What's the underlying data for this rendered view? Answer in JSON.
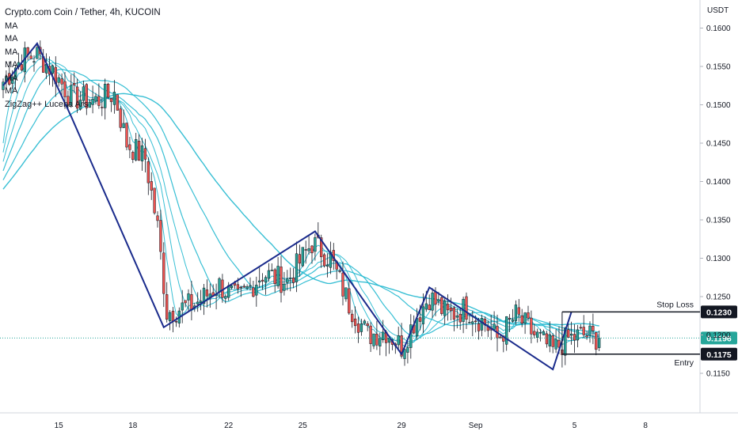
{
  "legend": {
    "title": "Crypto.com Coin / Tether, 4h, KUCOIN",
    "indicators": [
      "MA",
      "MA",
      "MA",
      "MA",
      "MA",
      "MA",
      "ZigZag++ Lucena Ars"
    ]
  },
  "unit": "USDT",
  "colors": {
    "bull": "#26a69a",
    "bear": "#ef5350",
    "zigzag": "#1a2b8c",
    "ma": "#22b8cf",
    "price_tag": "#26a69a",
    "level_tag": "#131722"
  },
  "chart_data": {
    "type": "candlestick",
    "symbol": "Crypto.com Coin / Tether",
    "timeframe": "4h",
    "exchange": "KUCOIN",
    "ylim": [
      0.1108,
      0.164
    ],
    "yticks": [
      "0.1150",
      "0.1200",
      "0.1250",
      "0.1300",
      "0.1350",
      "0.1400",
      "0.1450",
      "0.1500",
      "0.1550",
      "0.1600"
    ],
    "ytick_values": [
      0.115,
      0.12,
      0.125,
      0.13,
      0.135,
      0.14,
      0.145,
      0.15,
      0.155,
      0.16
    ],
    "xlim": [
      0,
      230
    ],
    "xticks": [
      {
        "label": "15",
        "index": 18
      },
      {
        "label": "18",
        "index": 42
      },
      {
        "label": "22",
        "index": 73
      },
      {
        "label": "25",
        "index": 97
      },
      {
        "label": "29",
        "index": 129
      },
      {
        "label": "Sep",
        "index": 153
      },
      {
        "label": "5",
        "index": 185
      },
      {
        "label": "8",
        "index": 208
      }
    ],
    "current_price": 0.1196,
    "price_labels": [
      "0.1196",
      "0.1230",
      "0.1175"
    ],
    "levels": [
      {
        "label": "Stop Loss",
        "value": 0.123,
        "tag": "0.1230"
      },
      {
        "label": "Entry",
        "value": 0.1175,
        "tag": "0.1175"
      }
    ],
    "zigzag": [
      {
        "i": 0,
        "p": 0.1525
      },
      {
        "i": 11,
        "p": 0.158
      },
      {
        "i": 22,
        "p": 0.1485
      },
      {
        "i": 52,
        "p": 0.121
      },
      {
        "i": 101,
        "p": 0.1335
      },
      {
        "i": 129,
        "p": 0.1175
      },
      {
        "i": 138,
        "p": 0.1262
      },
      {
        "i": 178,
        "p": 0.1155
      },
      {
        "i": 184,
        "p": 0.123
      }
    ],
    "anchors": [
      {
        "i": 0,
        "p": 0.153
      },
      {
        "i": 6,
        "p": 0.156
      },
      {
        "i": 11,
        "p": 0.1565
      },
      {
        "i": 16,
        "p": 0.1545
      },
      {
        "i": 22,
        "p": 0.151
      },
      {
        "i": 30,
        "p": 0.1505
      },
      {
        "i": 36,
        "p": 0.1515
      },
      {
        "i": 40,
        "p": 0.145
      },
      {
        "i": 46,
        "p": 0.143
      },
      {
        "i": 50,
        "p": 0.134
      },
      {
        "i": 53,
        "p": 0.123
      },
      {
        "i": 62,
        "p": 0.124
      },
      {
        "i": 70,
        "p": 0.1265
      },
      {
        "i": 76,
        "p": 0.1245
      },
      {
        "i": 84,
        "p": 0.128
      },
      {
        "i": 92,
        "p": 0.127
      },
      {
        "i": 100,
        "p": 0.132
      },
      {
        "i": 106,
        "p": 0.13
      },
      {
        "i": 112,
        "p": 0.124
      },
      {
        "i": 118,
        "p": 0.12
      },
      {
        "i": 124,
        "p": 0.1205
      },
      {
        "i": 129,
        "p": 0.1185
      },
      {
        "i": 134,
        "p": 0.1225
      },
      {
        "i": 138,
        "p": 0.125
      },
      {
        "i": 144,
        "p": 0.1225
      },
      {
        "i": 150,
        "p": 0.1235
      },
      {
        "i": 156,
        "p": 0.1215
      },
      {
        "i": 160,
        "p": 0.1195
      },
      {
        "i": 166,
        "p": 0.1225
      },
      {
        "i": 172,
        "p": 0.12
      },
      {
        "i": 178,
        "p": 0.118
      },
      {
        "i": 183,
        "p": 0.1195
      },
      {
        "i": 188,
        "p": 0.12
      },
      {
        "i": 193,
        "p": 0.1196
      }
    ]
  }
}
